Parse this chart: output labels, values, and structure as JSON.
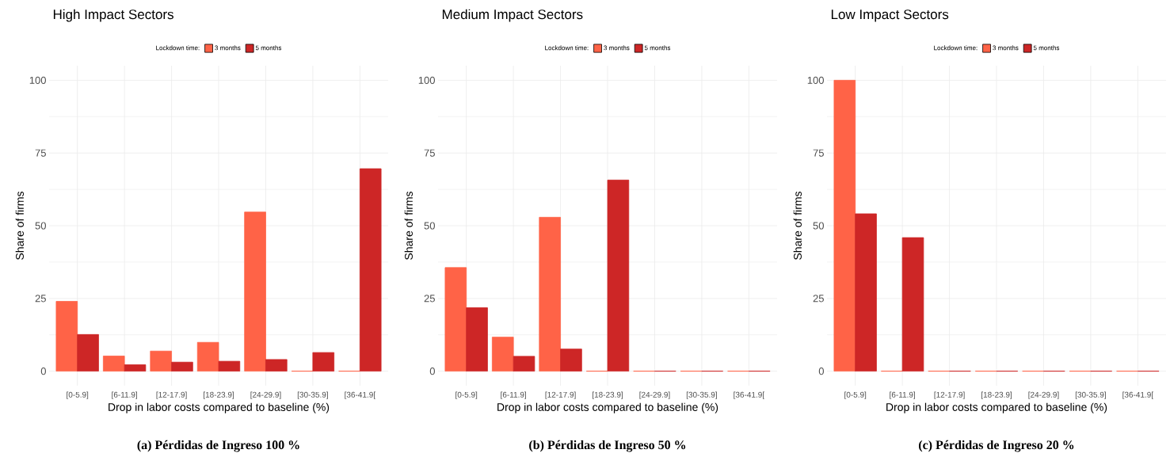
{
  "chart_data": [
    {
      "type": "bar",
      "title": "High Impact Sectors",
      "xlabel": "Drop in labor costs compared to baseline (%)",
      "ylabel": "Share of firms",
      "legend_title": "Lockdown time:",
      "categories": [
        "[0-5.9]",
        "[6-11.9]",
        "[12-17.9]",
        "[18-23.9]",
        "[24-29.9]",
        "[30-35.9]",
        "[36-41.9["
      ],
      "series": [
        {
          "name": "3 months",
          "color": "#ff6347",
          "values": [
            24.0,
            5.2,
            6.9,
            9.9,
            54.7,
            0,
            0
          ]
        },
        {
          "name": "5 months",
          "color": "#cd2626",
          "values": [
            12.6,
            2.2,
            3.1,
            3.4,
            4.0,
            6.4,
            69.6
          ]
        }
      ],
      "ylim": [
        -5,
        105
      ],
      "yticks": [
        0,
        25,
        50,
        75,
        100
      ],
      "grid": true,
      "legend": "top",
      "annotations": [
        "(a) Pérdidas de Ingreso 100 %"
      ]
    },
    {
      "type": "bar",
      "title": "Medium Impact Sectors",
      "xlabel": "Drop in labor costs compared to baseline (%)",
      "ylabel": "Share of firms",
      "legend_title": "Lockdown time:",
      "categories": [
        "[0-5.9]",
        "[6-11.9]",
        "[12-17.9]",
        "[18-23.9]",
        "[24-29.9]",
        "[30-35.9]",
        "[36-41.9["
      ],
      "series": [
        {
          "name": "3 months",
          "color": "#ff6347",
          "values": [
            35.6,
            11.7,
            52.9,
            0,
            0,
            0,
            0
          ]
        },
        {
          "name": "5 months",
          "color": "#cd2626",
          "values": [
            21.8,
            5.1,
            7.6,
            65.7,
            0,
            0,
            0
          ]
        }
      ],
      "ylim": [
        -5,
        105
      ],
      "yticks": [
        0,
        25,
        50,
        75,
        100
      ],
      "grid": true,
      "legend": "top",
      "annotations": [
        "(b) Pérdidas de Ingreso 50 %"
      ]
    },
    {
      "type": "bar",
      "title": "Low Impact Sectors",
      "xlabel": "Drop in labor costs compared to baseline (%)",
      "ylabel": "Share of firms",
      "legend_title": "Lockdown time:",
      "categories": [
        "[0-5.9]",
        "[6-11.9]",
        "[12-17.9]",
        "[18-23.9]",
        "[24-29.9]",
        "[30-35.9]",
        "[36-41.9["
      ],
      "series": [
        {
          "name": "3 months",
          "color": "#ff6347",
          "values": [
            100,
            0,
            0,
            0,
            0,
            0,
            0
          ]
        },
        {
          "name": "5 months",
          "color": "#cd2626",
          "values": [
            54.1,
            45.9,
            0,
            0,
            0,
            0,
            0
          ]
        }
      ],
      "ylim": [
        -5,
        105
      ],
      "yticks": [
        0,
        25,
        50,
        75,
        100
      ],
      "grid": true,
      "legend": "top",
      "annotations": [
        "(c) Pérdidas de Ingreso 20 %"
      ]
    }
  ]
}
